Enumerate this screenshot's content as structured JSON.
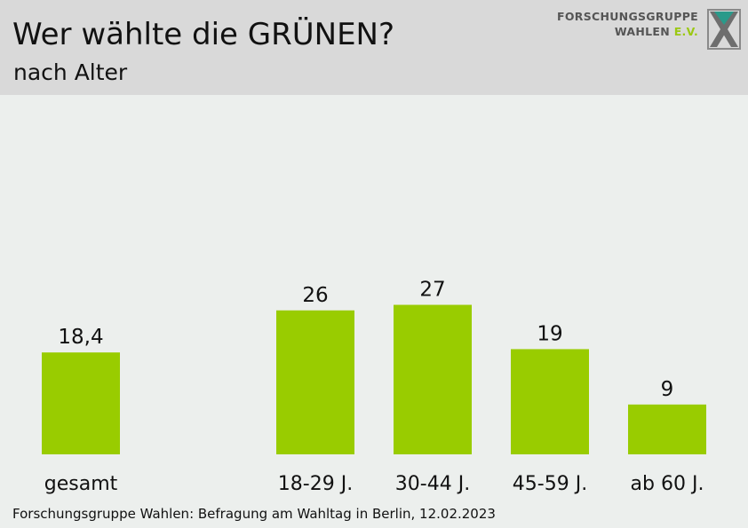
{
  "header": {
    "title": "Wer wählte die GRÜNEN?",
    "subtitle": "nach Alter",
    "logo_line1": "FORSCHUNGSGRUPPE",
    "logo_line2_a": "WAHLEN",
    "logo_line2_b": "E.V."
  },
  "chart_data": {
    "type": "bar",
    "categories": [
      "gesamt",
      "18-29 J.",
      "30-44 J.",
      "45-59 J.",
      "ab 60 J."
    ],
    "values": [
      18.4,
      26,
      27,
      19,
      9
    ],
    "value_labels": [
      "18,4",
      "26",
      "27",
      "19",
      "9"
    ],
    "bar_color": "#99cc00",
    "grid": false,
    "legend": "none"
  },
  "footer": {
    "source": "Forschungsgruppe Wahlen: Befragung am Wahltag in Berlin, 12.02.2023"
  },
  "colors": {
    "header_bg": "#d9d9d9",
    "page_bg": "#ecefed",
    "accent": "#99cc00"
  }
}
